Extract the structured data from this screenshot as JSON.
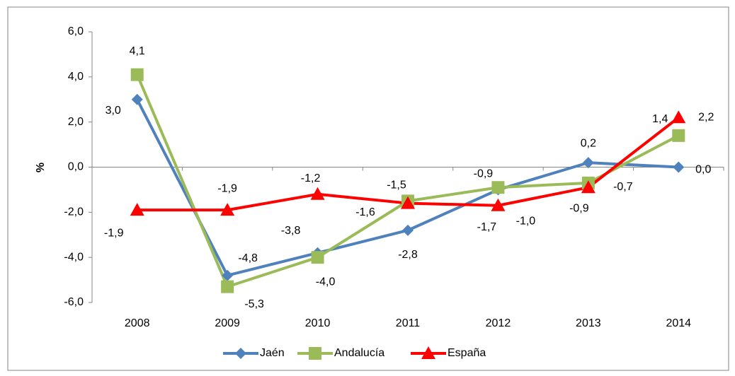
{
  "chart_data": {
    "type": "line",
    "categories": [
      "2008",
      "2009",
      "2010",
      "2011",
      "2012",
      "2013",
      "2014"
    ],
    "y_label": "%",
    "ylim": [
      -6,
      6
    ],
    "yticks": [
      {
        "value": -6,
        "label": "-6,0"
      },
      {
        "value": -4,
        "label": "-4,0"
      },
      {
        "value": -2,
        "label": "-2,0"
      },
      {
        "value": 0,
        "label": "0,0"
      },
      {
        "value": 2,
        "label": "2,0"
      },
      {
        "value": 4,
        "label": "4,0"
      },
      {
        "value": 6,
        "label": "6,0"
      }
    ],
    "grid": false,
    "legend": "bottom",
    "series": [
      {
        "name": "Jaén",
        "color": "#4f81bd",
        "marker": "diamond",
        "values": [
          3.0,
          -4.8,
          -3.8,
          -2.8,
          -1.0,
          0.2,
          0.0
        ],
        "value_labels": [
          "3,0",
          "-4,8",
          "-3,8",
          "-2,8",
          "-1,0",
          "0,2",
          "0,0"
        ]
      },
      {
        "name": "Andalucía",
        "color": "#9bbb59",
        "marker": "square",
        "values": [
          4.1,
          -5.3,
          -4.0,
          -1.5,
          -0.9,
          -0.7,
          1.4
        ],
        "value_labels": [
          "4,1",
          "-5,3",
          "-4,0",
          "-1,5",
          "-0,9",
          "-0,7",
          "1,4"
        ]
      },
      {
        "name": "España",
        "color": "#ff0000",
        "marker": "triangle",
        "values": [
          -1.9,
          -1.9,
          -1.2,
          -1.6,
          -1.7,
          -0.9,
          2.2
        ],
        "value_labels": [
          "-1,9",
          "-1,9",
          "-1,2",
          "-1,6",
          "-1,7",
          "-0,9",
          "2,2"
        ]
      }
    ]
  }
}
